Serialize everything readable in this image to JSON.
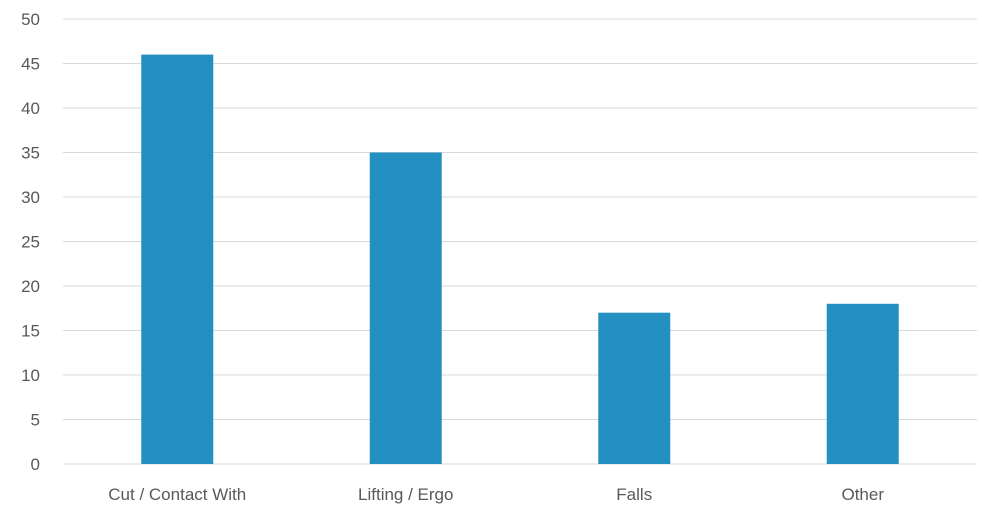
{
  "chart_data": {
    "type": "bar",
    "title": "",
    "xlabel": "",
    "ylabel": "",
    "categories": [
      "Cut / Contact With",
      "Lifting / Ergo",
      "Falls",
      "Other"
    ],
    "values": [
      46,
      35,
      17,
      18
    ],
    "ylim": [
      0,
      50
    ],
    "yticks": [
      0,
      5,
      10,
      15,
      20,
      25,
      30,
      35,
      40,
      45,
      50
    ],
    "grid": true,
    "legend": "none",
    "colors": {
      "bar": "#2490C2",
      "grid": "#D9D9D9",
      "text": "#595959"
    }
  }
}
